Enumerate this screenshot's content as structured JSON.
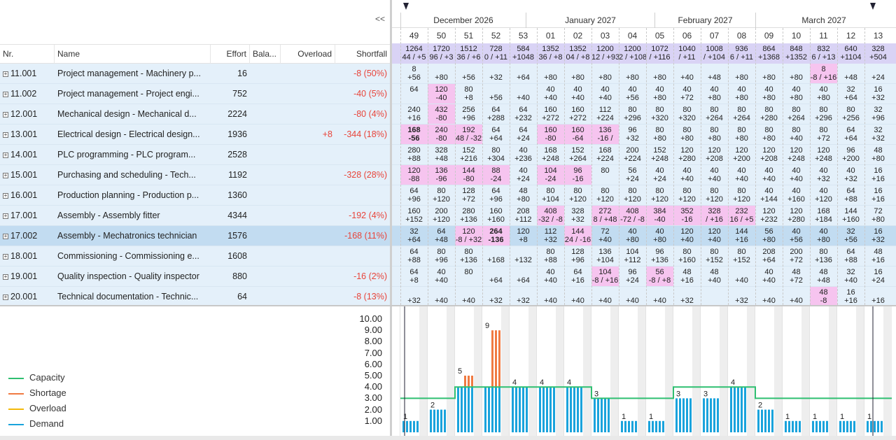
{
  "toolbar": {
    "collapse": "<<"
  },
  "columns": {
    "nr": "Nr.",
    "name": "Name",
    "effort": "Effort",
    "balance": "Bala...",
    "overload": "Overload",
    "shortfall": "Shortfall"
  },
  "rows": [
    {
      "nr": "11.001",
      "name": "Project management - Machinery p...",
      "effort": "16",
      "overload": "",
      "shortfall": "-8 (50%)"
    },
    {
      "nr": "11.002",
      "name": "Project management - Project engi...",
      "effort": "752",
      "overload": "",
      "shortfall": "-40 (5%)"
    },
    {
      "nr": "12.001",
      "name": "Mechanical design - Mechanical d...",
      "effort": "2224",
      "overload": "",
      "shortfall": "-80 (4%)"
    },
    {
      "nr": "13.001",
      "name": "Electrical design - Electrical design...",
      "effort": "1936",
      "overload": "+8",
      "shortfall": "-344 (18%)"
    },
    {
      "nr": "14.001",
      "name": "PLC programming - PLC program...",
      "effort": "2528",
      "overload": "",
      "shortfall": ""
    },
    {
      "nr": "15.001",
      "name": "Purchasing and scheduling - Tech...",
      "effort": "1192",
      "overload": "",
      "shortfall": "-328 (28%)"
    },
    {
      "nr": "16.001",
      "name": "Production planning - Production p...",
      "effort": "1360",
      "overload": "",
      "shortfall": ""
    },
    {
      "nr": "17.001",
      "name": "Assembly - Assembly fitter",
      "effort": "4344",
      "overload": "",
      "shortfall": "-192 (4%)"
    },
    {
      "nr": "17.002",
      "name": "Assembly - Mechatronics technician",
      "effort": "1576",
      "overload": "",
      "shortfall": "-168 (11%)",
      "selected": true
    },
    {
      "nr": "18.001",
      "name": "Commissioning - Commissioning e...",
      "effort": "1608",
      "overload": "",
      "shortfall": ""
    },
    {
      "nr": "19.001",
      "name": "Quality inspection - Quality inspector",
      "effort": "880",
      "overload": "",
      "shortfall": "-16 (2%)"
    },
    {
      "nr": "20.001",
      "name": "Technical documentation - Technic...",
      "effort": "64",
      "overload": "",
      "shortfall": "-8 (13%)"
    }
  ],
  "months": [
    "December 2026",
    "January 2027",
    "February 2027",
    "March 2027"
  ],
  "weeks": [
    "49",
    "50",
    "51",
    "52",
    "53",
    "01",
    "02",
    "03",
    "04",
    "05",
    "06",
    "07",
    "08",
    "09",
    "10",
    "11",
    "12",
    "13"
  ],
  "totals": [
    [
      "1264",
      "44 / +5"
    ],
    [
      "1720",
      "96 / +3"
    ],
    [
      "1512",
      "36 / +6"
    ],
    [
      "728",
      "0 / +11"
    ],
    [
      "584",
      "+1048"
    ],
    [
      "1352",
      "36 / +8"
    ],
    [
      "1352",
      "04 / +8"
    ],
    [
      "1200",
      "12 / +93"
    ],
    [
      "1200",
      "2 / +108"
    ],
    [
      "1072",
      "/ +116"
    ],
    [
      "1040",
      "/ +11"
    ],
    [
      "1008",
      "/ +104"
    ],
    [
      "936",
      "6 / +11"
    ],
    [
      "864",
      "+1368"
    ],
    [
      "848",
      "+1352"
    ],
    [
      "832",
      "6 / +13"
    ],
    [
      "640",
      "+1104"
    ],
    [
      "328",
      "+504"
    ]
  ],
  "grid": [
    [
      [
        "8",
        "+56",
        0
      ],
      [
        "",
        "+80",
        0
      ],
      [
        "",
        "+56",
        0
      ],
      [
        "",
        "+32",
        0
      ],
      [
        "",
        "+64",
        0
      ],
      [
        "",
        "+80",
        0
      ],
      [
        "",
        "+80",
        0
      ],
      [
        "",
        "+80",
        0
      ],
      [
        "",
        "+80",
        0
      ],
      [
        "",
        "+80",
        0
      ],
      [
        "",
        "+40",
        0
      ],
      [
        "",
        "+48",
        0
      ],
      [
        "",
        "+80",
        0
      ],
      [
        "",
        "+80",
        0
      ],
      [
        "",
        "+80",
        0
      ],
      [
        "8",
        "-8 / +16",
        1
      ],
      [
        "",
        "+48",
        0
      ],
      [
        "",
        "+24",
        0
      ]
    ],
    [
      [
        "64",
        "",
        0
      ],
      [
        "120",
        "-40",
        1
      ],
      [
        "80",
        "+8",
        0
      ],
      [
        "",
        "+56",
        0
      ],
      [
        "",
        "+40",
        0
      ],
      [
        "40",
        "+40",
        0
      ],
      [
        "40",
        "+40",
        0
      ],
      [
        "40",
        "+40",
        0
      ],
      [
        "40",
        "+56",
        0
      ],
      [
        "40",
        "+80",
        0
      ],
      [
        "40",
        "+72",
        0
      ],
      [
        "40",
        "+80",
        0
      ],
      [
        "40",
        "+80",
        0
      ],
      [
        "40",
        "+80",
        0
      ],
      [
        "40",
        "+80",
        0
      ],
      [
        "40",
        "+80",
        0
      ],
      [
        "32",
        "+64",
        0
      ],
      [
        "16",
        "+32",
        0
      ]
    ],
    [
      [
        "240",
        "+16",
        0
      ],
      [
        "432",
        "-80",
        1
      ],
      [
        "256",
        "+96",
        0
      ],
      [
        "64",
        "+288",
        0
      ],
      [
        "64",
        "+232",
        0
      ],
      [
        "160",
        "+272",
        0
      ],
      [
        "160",
        "+272",
        0
      ],
      [
        "112",
        "+224",
        0
      ],
      [
        "80",
        "+296",
        0
      ],
      [
        "80",
        "+320",
        0
      ],
      [
        "80",
        "+320",
        0
      ],
      [
        "80",
        "+264",
        0
      ],
      [
        "80",
        "+264",
        0
      ],
      [
        "80",
        "+280",
        0
      ],
      [
        "80",
        "+264",
        0
      ],
      [
        "80",
        "+296",
        0
      ],
      [
        "80",
        "+256",
        0
      ],
      [
        "32",
        "+96",
        0
      ]
    ],
    [
      [
        "168",
        "-56",
        1,
        1
      ],
      [
        "240",
        "-80",
        1
      ],
      [
        "192",
        "48 / -32",
        1
      ],
      [
        "64",
        "+64",
        0
      ],
      [
        "64",
        "+24",
        0
      ],
      [
        "160",
        "-80",
        1
      ],
      [
        "160",
        "-64",
        1
      ],
      [
        "136",
        "-16 /",
        1
      ],
      [
        "96",
        "+32",
        0
      ],
      [
        "80",
        "+80",
        0
      ],
      [
        "80",
        "+80",
        0
      ],
      [
        "80",
        "+80",
        0
      ],
      [
        "80",
        "+80",
        0
      ],
      [
        "80",
        "+80",
        0
      ],
      [
        "80",
        "+40",
        0
      ],
      [
        "80",
        "+72",
        0
      ],
      [
        "64",
        "+64",
        0
      ],
      [
        "32",
        "+32",
        0
      ]
    ],
    [
      [
        "280",
        "+88",
        0
      ],
      [
        "328",
        "+48",
        0
      ],
      [
        "152",
        "+216",
        0
      ],
      [
        "80",
        "+304",
        0
      ],
      [
        "40",
        "+236",
        0
      ],
      [
        "168",
        "+248",
        0
      ],
      [
        "152",
        "+264",
        0
      ],
      [
        "168",
        "+224",
        0
      ],
      [
        "200",
        "+224",
        0
      ],
      [
        "152",
        "+248",
        0
      ],
      [
        "120",
        "+280",
        0
      ],
      [
        "120",
        "+208",
        0
      ],
      [
        "120",
        "+200",
        0
      ],
      [
        "120",
        "+208",
        0
      ],
      [
        "120",
        "+248",
        0
      ],
      [
        "120",
        "+248",
        0
      ],
      [
        "96",
        "+200",
        0
      ],
      [
        "48",
        "+80",
        0
      ]
    ],
    [
      [
        "120",
        "-88",
        1
      ],
      [
        "136",
        "-96",
        1
      ],
      [
        "144",
        "-80",
        1
      ],
      [
        "88",
        "-24",
        1
      ],
      [
        "40",
        "+24",
        0
      ],
      [
        "104",
        "-24",
        1
      ],
      [
        "96",
        "-16",
        1
      ],
      [
        "80",
        "",
        0
      ],
      [
        "56",
        "+24",
        0
      ],
      [
        "40",
        "+24",
        0
      ],
      [
        "40",
        "+40",
        0
      ],
      [
        "40",
        "+40",
        0
      ],
      [
        "40",
        "+40",
        0
      ],
      [
        "40",
        "+40",
        0
      ],
      [
        "40",
        "+40",
        0
      ],
      [
        "40",
        "+32",
        0
      ],
      [
        "40",
        "+32",
        0
      ],
      [
        "16",
        "+16",
        0
      ]
    ],
    [
      [
        "64",
        "+96",
        0
      ],
      [
        "80",
        "+120",
        0
      ],
      [
        "128",
        "+72",
        0
      ],
      [
        "64",
        "+96",
        0
      ],
      [
        "48",
        "+80",
        0
      ],
      [
        "80",
        "+104",
        0
      ],
      [
        "80",
        "+120",
        0
      ],
      [
        "80",
        "+120",
        0
      ],
      [
        "80",
        "+120",
        0
      ],
      [
        "80",
        "+120",
        0
      ],
      [
        "80",
        "+120",
        0
      ],
      [
        "80",
        "+120",
        0
      ],
      [
        "80",
        "+120",
        0
      ],
      [
        "40",
        "+144",
        0
      ],
      [
        "40",
        "+160",
        0
      ],
      [
        "40",
        "+120",
        0
      ],
      [
        "64",
        "+88",
        0
      ],
      [
        "16",
        "+16",
        0
      ]
    ],
    [
      [
        "160",
        "+152",
        0
      ],
      [
        "200",
        "+120",
        0
      ],
      [
        "280",
        "+136",
        0
      ],
      [
        "160",
        "+160",
        0
      ],
      [
        "208",
        "+112",
        0
      ],
      [
        "408",
        "-32 / -8",
        1
      ],
      [
        "328",
        "+32",
        0
      ],
      [
        "272",
        "8 / +48",
        1
      ],
      [
        "408",
        "-72 / -8",
        1
      ],
      [
        "384",
        "-40",
        1
      ],
      [
        "352",
        "-16",
        1
      ],
      [
        "328",
        "/ +16",
        1
      ],
      [
        "232",
        "16 / +5",
        1
      ],
      [
        "120",
        "+232",
        0
      ],
      [
        "120",
        "+280",
        0
      ],
      [
        "168",
        "+184",
        0
      ],
      [
        "144",
        "+160",
        0
      ],
      [
        "72",
        "+80",
        0
      ]
    ],
    [
      [
        "32",
        "+64",
        0
      ],
      [
        "64",
        "+48",
        0
      ],
      [
        "120",
        "-8 / +32",
        1
      ],
      [
        "264",
        "-136",
        1,
        1
      ],
      [
        "120",
        "+8",
        0
      ],
      [
        "112",
        "+32",
        0
      ],
      [
        "144",
        "24 / -16",
        1
      ],
      [
        "72",
        "+40",
        0
      ],
      [
        "40",
        "+80",
        0
      ],
      [
        "40",
        "+80",
        0
      ],
      [
        "120",
        "+40",
        0
      ],
      [
        "120",
        "+40",
        0
      ],
      [
        "144",
        "+16",
        0
      ],
      [
        "56",
        "+80",
        0
      ],
      [
        "40",
        "+56",
        0
      ],
      [
        "40",
        "+80",
        0
      ],
      [
        "32",
        "+56",
        0
      ],
      [
        "16",
        "+32",
        0
      ]
    ],
    [
      [
        "64",
        "+88",
        0
      ],
      [
        "80",
        "+96",
        0
      ],
      [
        "80",
        "+136",
        0
      ],
      [
        "",
        "+168",
        0
      ],
      [
        "",
        "+132",
        0
      ],
      [
        "80",
        "+88",
        0
      ],
      [
        "128",
        "+96",
        0
      ],
      [
        "136",
        "+104",
        0
      ],
      [
        "104",
        "+112",
        0
      ],
      [
        "96",
        "+136",
        0
      ],
      [
        "80",
        "+160",
        0
      ],
      [
        "80",
        "+152",
        0
      ],
      [
        "80",
        "+152",
        0
      ],
      [
        "208",
        "+64",
        0
      ],
      [
        "200",
        "+72",
        0
      ],
      [
        "80",
        "+136",
        0
      ],
      [
        "64",
        "+88",
        0
      ],
      [
        "48",
        "+16",
        0
      ]
    ],
    [
      [
        "64",
        "+8",
        0
      ],
      [
        "40",
        "+40",
        0
      ],
      [
        "80",
        "",
        0
      ],
      [
        "",
        "+64",
        0
      ],
      [
        "",
        "+64",
        0
      ],
      [
        "40",
        "+40",
        0
      ],
      [
        "64",
        "+16",
        0
      ],
      [
        "104",
        "-8 / +16",
        1
      ],
      [
        "96",
        "+24",
        0
      ],
      [
        "56",
        "-8 / +8",
        1
      ],
      [
        "48",
        "+16",
        0
      ],
      [
        "48",
        "+40",
        0
      ],
      [
        "",
        "+40",
        0
      ],
      [
        "40",
        "+40",
        0
      ],
      [
        "48",
        "+72",
        0
      ],
      [
        "48",
        "+48",
        0
      ],
      [
        "32",
        "+40",
        0
      ],
      [
        "16",
        "+24",
        0
      ]
    ],
    [
      [
        "",
        "+32",
        0
      ],
      [
        "",
        "+40",
        0
      ],
      [
        "",
        "+40",
        0
      ],
      [
        "",
        "+32",
        0
      ],
      [
        "",
        "+32",
        0
      ],
      [
        "",
        "+40",
        0
      ],
      [
        "",
        "+40",
        0
      ],
      [
        "",
        "+40",
        0
      ],
      [
        "",
        "+40",
        0
      ],
      [
        "",
        "+40",
        0
      ],
      [
        "",
        "+32",
        0
      ],
      [
        "",
        "",
        0
      ],
      [
        "",
        "+32",
        0
      ],
      [
        "",
        "+40",
        0
      ],
      [
        "",
        "+40",
        0
      ],
      [
        "48",
        "-8",
        1
      ],
      [
        "16",
        "+16",
        0
      ],
      [
        "",
        "+16",
        0
      ]
    ]
  ],
  "legend": {
    "capacity": "Capacity",
    "shortage": "Shortage",
    "overload": "Overload",
    "demand": "Demand"
  },
  "colors": {
    "capacity": "#2fbf71",
    "shortage": "#f07a42",
    "overload": "#f3b90a",
    "demand": "#1aa3dc",
    "pink": "#f6c4ef",
    "rowbg": "#e4f0fa"
  },
  "chart_data": {
    "type": "bar",
    "ylim": [
      0,
      10
    ],
    "yticks": [
      "1.00",
      "2.00",
      "3.00",
      "4.00",
      "5.00",
      "6.00",
      "7.00",
      "8.00",
      "9.00",
      "10.00"
    ],
    "bar_labels": [
      "1",
      "2",
      "5",
      "9",
      "4",
      "4",
      "4",
      "3",
      "1",
      "1",
      "3",
      "3",
      "4",
      "2",
      "1",
      "1",
      "1",
      "1"
    ],
    "series": [
      {
        "name": "Capacity",
        "values": [
          3,
          3,
          4,
          4,
          4,
          4,
          4,
          3,
          3,
          3,
          4,
          4,
          4,
          3,
          3,
          3,
          3,
          3
        ]
      },
      {
        "name": "Demand",
        "values": [
          1,
          2,
          4,
          4,
          4,
          4,
          4,
          3,
          1,
          1,
          3,
          3,
          4,
          2,
          1,
          1,
          1,
          1
        ]
      },
      {
        "name": "Shortage",
        "values": [
          0,
          0,
          1,
          5,
          0,
          0,
          0,
          0,
          0,
          0,
          0,
          0,
          0,
          0,
          0,
          0,
          0,
          0
        ]
      }
    ]
  }
}
